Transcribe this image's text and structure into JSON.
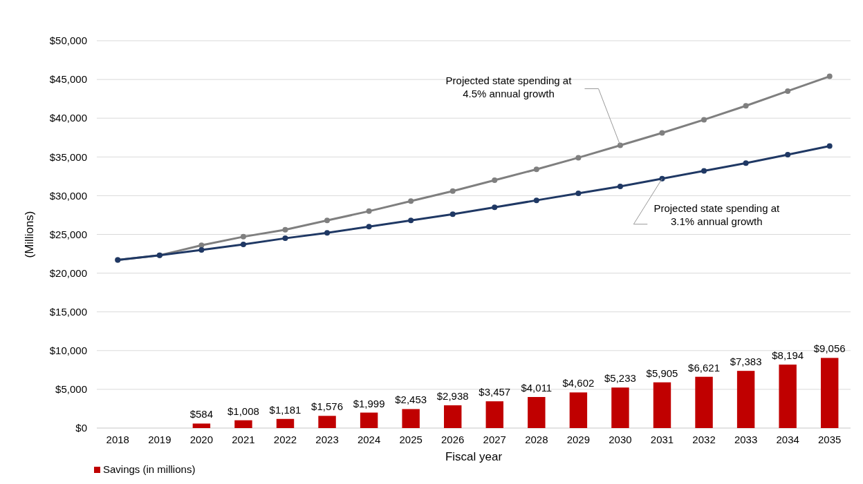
{
  "chart_data": {
    "type": "bar",
    "xlabel": "Fiscal year",
    "ylabel": "(Millions)",
    "categories": [
      "2018",
      "2019",
      "2020",
      "2021",
      "2022",
      "2023",
      "2024",
      "2025",
      "2026",
      "2027",
      "2028",
      "2029",
      "2030",
      "2031",
      "2032",
      "2033",
      "2034",
      "2035"
    ],
    "series": [
      {
        "name": "Savings (in millions)",
        "color": "#c00000",
        "values": [
          null,
          null,
          584,
          1008,
          1181,
          1576,
          1999,
          2453,
          2938,
          3457,
          4011,
          4602,
          5233,
          5905,
          6621,
          7383,
          8194,
          9056
        ],
        "value_labels": [
          null,
          null,
          "$584",
          "$1,008",
          "$1,181",
          "$1,576",
          "$1,999",
          "$2,453",
          "$2,938",
          "$3,457",
          "$4,011",
          "$4,602",
          "$5,233",
          "$5,905",
          "$6,621",
          "$7,383",
          "$8,194",
          "$9,056"
        ]
      },
      {
        "name": "Projected state spending at 4.5% annual growth",
        "type": "line",
        "color": "#7f7f7f",
        "values": [
          21700,
          22300,
          23600,
          24700,
          25600,
          26800,
          28000,
          29300,
          30600,
          32000,
          33400,
          34900,
          36500,
          38100,
          39800,
          41600,
          43500,
          45400
        ]
      },
      {
        "name": "Projected state spending at 3.1% annual growth",
        "type": "line",
        "color": "#1f3864",
        "values": [
          21700,
          22300,
          23000,
          23700,
          24500,
          25200,
          26000,
          26800,
          27600,
          28500,
          29400,
          30300,
          31200,
          32200,
          33200,
          34200,
          35300,
          36400
        ]
      }
    ],
    "ylim": [
      0,
      50000
    ],
    "yticks": [
      {
        "value": 0,
        "label": "$0"
      },
      {
        "value": 5000,
        "label": "$5,000"
      },
      {
        "value": 10000,
        "label": "$10,000"
      },
      {
        "value": 15000,
        "label": "$15,000"
      },
      {
        "value": 20000,
        "label": "$20,000"
      },
      {
        "value": 25000,
        "label": "$25,000"
      },
      {
        "value": 30000,
        "label": "$30,000"
      },
      {
        "value": 35000,
        "label": "$35,000"
      },
      {
        "value": 40000,
        "label": "$40,000"
      },
      {
        "value": 45000,
        "label": "$45,000"
      },
      {
        "value": 50000,
        "label": "$50,000"
      }
    ],
    "grid": "y",
    "legend": "bottom left",
    "marker": "circle",
    "line_style": "solid"
  }
}
